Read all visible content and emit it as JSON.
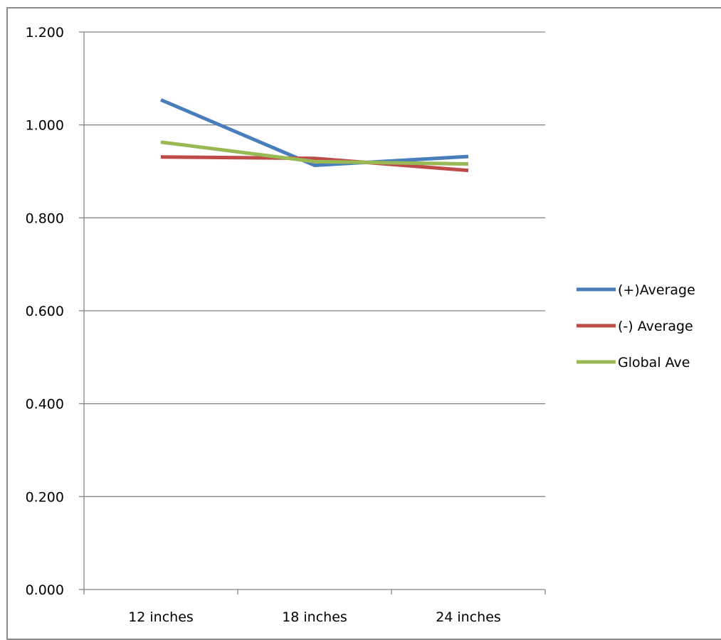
{
  "chart_data": {
    "type": "line",
    "title": "",
    "xlabel": "",
    "ylabel": "",
    "categories": [
      "12 inches",
      "18 inches",
      "24 inches"
    ],
    "ylim": [
      0,
      1.2
    ],
    "yticks": [
      "0.000",
      "0.200",
      "0.400",
      "0.600",
      "0.800",
      "1.000",
      "1.200"
    ],
    "ytick_values": [
      0,
      0.2,
      0.4,
      0.6,
      0.8,
      1.0,
      1.2
    ],
    "grid": true,
    "legend_position": "right",
    "series": [
      {
        "name": "(+)Average",
        "color": "#4a7ebb",
        "values": [
          1.054,
          0.913,
          0.932
        ]
      },
      {
        "name": "(-) Average",
        "color": "#be4b48",
        "values": [
          0.931,
          0.928,
          0.902
        ]
      },
      {
        "name": "Global Ave",
        "color": "#98b954",
        "values": [
          0.963,
          0.921,
          0.916
        ]
      }
    ]
  }
}
